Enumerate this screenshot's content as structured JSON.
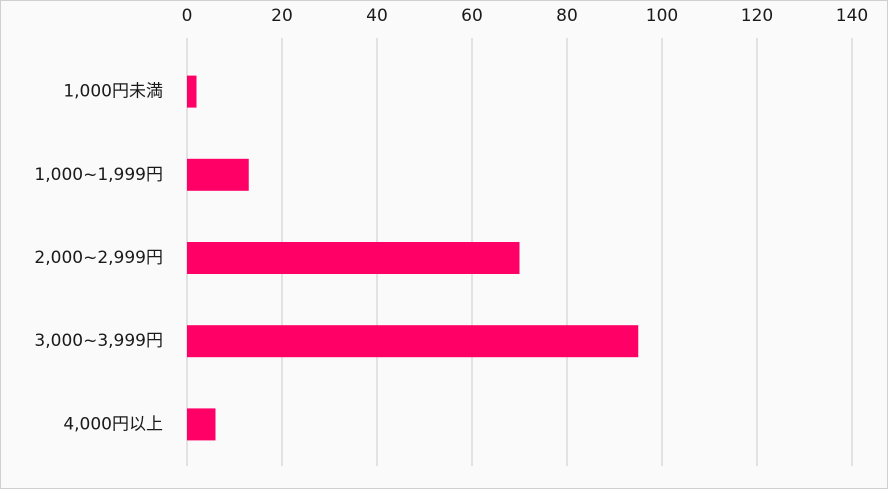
{
  "chart_data": {
    "type": "barh",
    "categories": [
      "1,000円未満",
      "1,000~1,999円",
      "2,000~2,999円",
      "3,000~3,999円",
      "4,000円以上"
    ],
    "values": [
      2,
      13,
      70,
      95,
      6
    ],
    "color": "#ff0066",
    "xlim": [
      0,
      140
    ],
    "xticks": [
      0,
      20,
      40,
      60,
      80,
      100,
      120,
      140
    ],
    "grid": true
  }
}
